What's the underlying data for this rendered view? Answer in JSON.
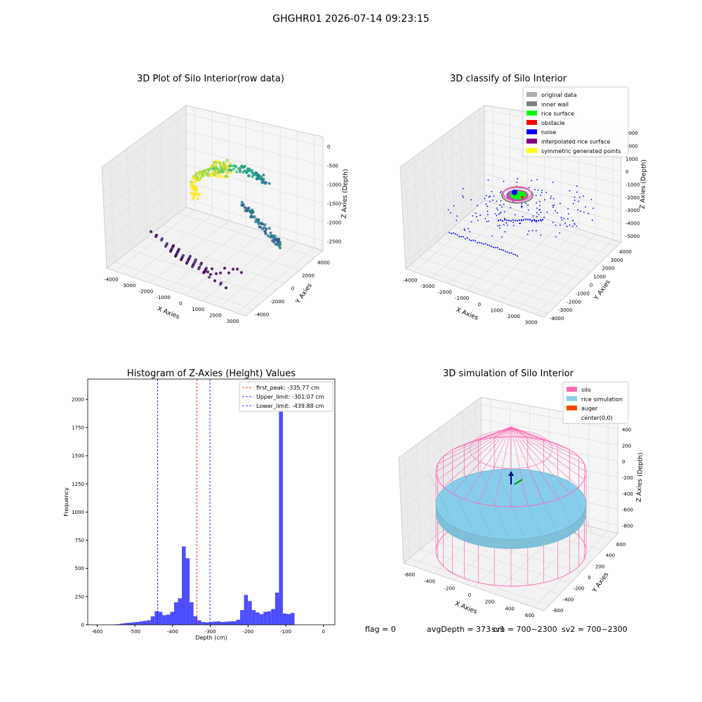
{
  "figure": {
    "suptitle": "GHGHR01 2026-07-14 09:23:15",
    "status_line": {
      "flag": "flag = 0",
      "avg_depth": "avgDepth = 373 cm",
      "sv1": "sv1 = 700~2300",
      "sv2": "sv2 = 700~2300"
    }
  },
  "chart_data": [
    {
      "type": "scatter",
      "projection": "3d",
      "title": "3D Plot of Silo Interior(row data)",
      "xlabel": "X Axies",
      "ylabel": "Y Axies",
      "zlabel": "Z Axies (Depth)",
      "x_ticks": [
        -4000,
        -3000,
        -2000,
        -1000,
        0,
        1000,
        2000,
        3000
      ],
      "y_ticks": [
        -4000,
        -2000,
        0,
        2000,
        4000
      ],
      "z_ticks": [
        0,
        -500,
        -1000,
        -1500,
        -2000,
        -2500
      ],
      "colormap": "viridis",
      "grid": true
    },
    {
      "type": "scatter",
      "projection": "3d",
      "title": "3D classify of Silo Interior",
      "xlabel": "X Axies",
      "ylabel": "Y Axies",
      "zlabel": "Z Axies (Depth)",
      "x_ticks": [
        -4000,
        -3000,
        -2000,
        -1000,
        0,
        1000,
        2000,
        3000
      ],
      "y_ticks": [
        -4000,
        -3000,
        -2000,
        -1000,
        0,
        1000,
        2000,
        3000,
        4000
      ],
      "z_ticks": [
        3000,
        2000,
        1000,
        0,
        -1000,
        -2000,
        -3000,
        -4000,
        -5000
      ],
      "legend": [
        {
          "label": "original data",
          "color": "#b0b0b0"
        },
        {
          "label": "inner wall",
          "color": "#808080"
        },
        {
          "label": "rice surface",
          "color": "#00ff00"
        },
        {
          "label": "obstacle",
          "color": "#ff0000"
        },
        {
          "label": "noise",
          "color": "#0000ff"
        },
        {
          "label": "interpolated rice surface",
          "color": "#800080"
        },
        {
          "label": "symmetric generated points",
          "color": "#ffff00"
        }
      ],
      "legend_position": "top-right",
      "grid": true
    },
    {
      "type": "bar",
      "title": "Histogram of Z-Axies (Height) Values",
      "xlabel": "Depth (cm)",
      "ylabel": "Frequency",
      "xlim": [
        -625,
        30
      ],
      "ylim": [
        0,
        2180
      ],
      "x_ticks": [
        -600,
        -500,
        -400,
        -300,
        -200,
        -100,
        0
      ],
      "y_ticks": [
        0,
        250,
        500,
        750,
        1000,
        1250,
        1500,
        1750,
        2000
      ],
      "bar_color": "#4d4dff",
      "bin_width": 10.3,
      "bins_start": -561,
      "counts": [
        2,
        5,
        10,
        15,
        18,
        22,
        25,
        30,
        35,
        40,
        75,
        120,
        115,
        85,
        90,
        115,
        200,
        235,
        695,
        590,
        200,
        75,
        40,
        25,
        22,
        25,
        28,
        30,
        25,
        28,
        30,
        32,
        45,
        130,
        265,
        210,
        130,
        110,
        95,
        115,
        120,
        140,
        285,
        2060,
        100,
        95,
        105
      ],
      "vlines": [
        {
          "label": "first_peak: -335.77 cm",
          "x": -335.77,
          "color": "#ff0000"
        },
        {
          "label": "Upper_limit: -301.07 cm",
          "x": -301.07,
          "color": "#0000ff"
        },
        {
          "label": "Lower_limit: -439.88 cm",
          "x": -439.88,
          "color": "#0000ff"
        }
      ],
      "legend_position": "top-right"
    },
    {
      "type": "surface",
      "projection": "3d",
      "title": "3D simulation of Silo Interior",
      "xlabel": "X Axies",
      "ylabel": "Y Axies",
      "zlabel": "Z Axies (Depth)",
      "x_ticks": [
        -600,
        -400,
        -200,
        0,
        200,
        400,
        600
      ],
      "y_ticks": [
        -600,
        -400,
        -200,
        0,
        200,
        400,
        600
      ],
      "z_ticks": [
        400,
        200,
        0,
        -200,
        -400,
        -600,
        -800
      ],
      "legend": [
        {
          "label": "silo",
          "color": "#ff69b4"
        },
        {
          "label": "rice simulation",
          "color": "#87ceeb"
        },
        {
          "label": "auger",
          "color": "#ff4500"
        },
        {
          "label": "center(0,0)",
          "color": "#ffffff"
        }
      ],
      "legend_position": "top-right",
      "grid": true
    }
  ]
}
